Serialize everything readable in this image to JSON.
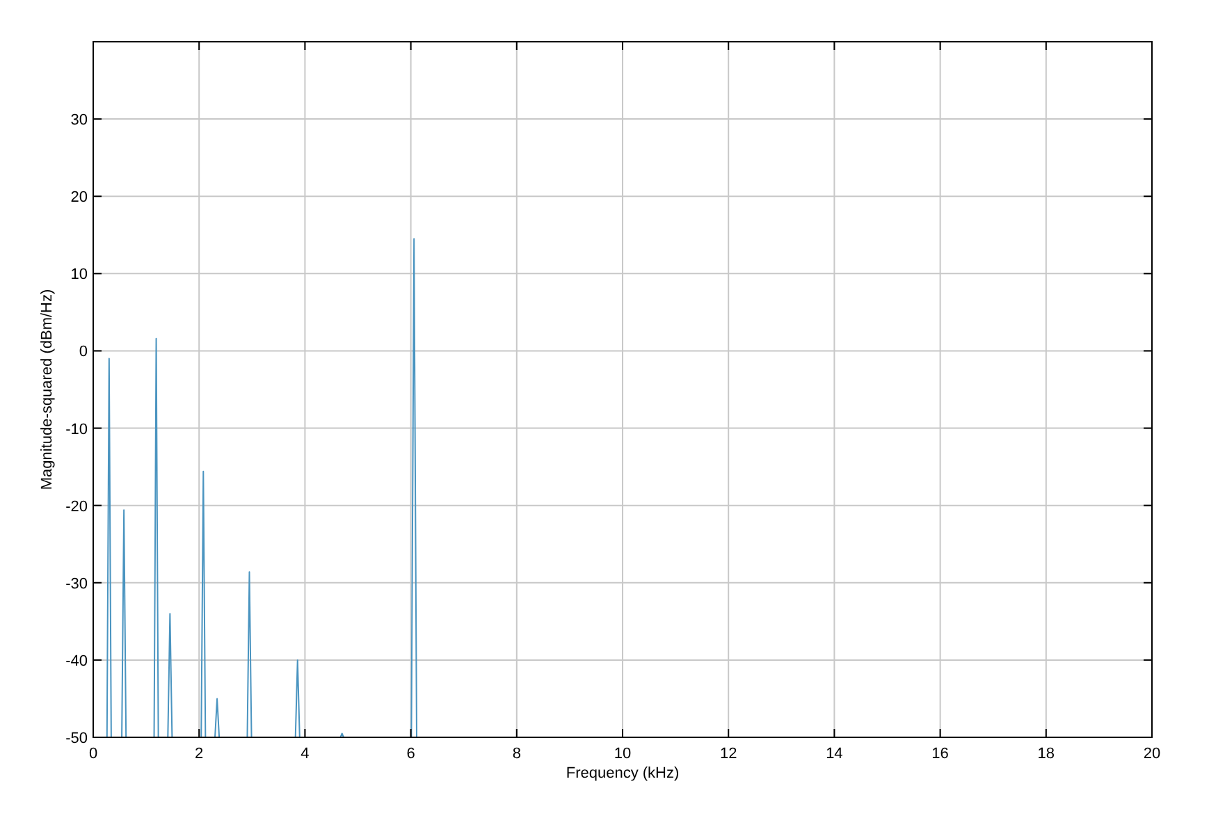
{
  "chart_data": {
    "type": "line",
    "xlabel": "Frequency (kHz)",
    "ylabel": "Magnitude-squared (dBm/Hz)",
    "x": [
      0.26,
      0.3,
      0.34,
      0.54,
      0.58,
      0.62,
      1.15,
      1.19,
      1.23,
      1.41,
      1.45,
      1.49,
      2.04,
      2.08,
      2.12,
      2.3,
      2.34,
      2.38,
      2.91,
      2.95,
      2.99,
      3.82,
      3.86,
      3.9,
      4.67,
      4.7,
      4.73,
      6.01,
      6.06,
      6.11
    ],
    "series": [
      {
        "color": "#4a94c0",
        "values": [
          -50,
          -1,
          -50,
          -50,
          -20.6,
          -50,
          -50,
          1.6,
          -50,
          -50,
          -34,
          -50,
          -50,
          -15.6,
          -50,
          -50,
          -45,
          -50,
          -50,
          -28.6,
          -50,
          -50,
          -40,
          -50,
          -50,
          -49.5,
          -50,
          -50,
          14.5,
          -50
        ]
      }
    ],
    "xlim": [
      0,
      20
    ],
    "xticks": [
      0,
      2,
      4,
      6,
      8,
      10,
      12,
      14,
      16,
      18,
      20
    ],
    "ylim": [
      -50,
      40
    ],
    "yticks": [
      -50,
      -40,
      -30,
      -20,
      -10,
      0,
      10,
      20,
      30
    ],
    "grid": true,
    "marker": "none",
    "line_style": "solid"
  }
}
